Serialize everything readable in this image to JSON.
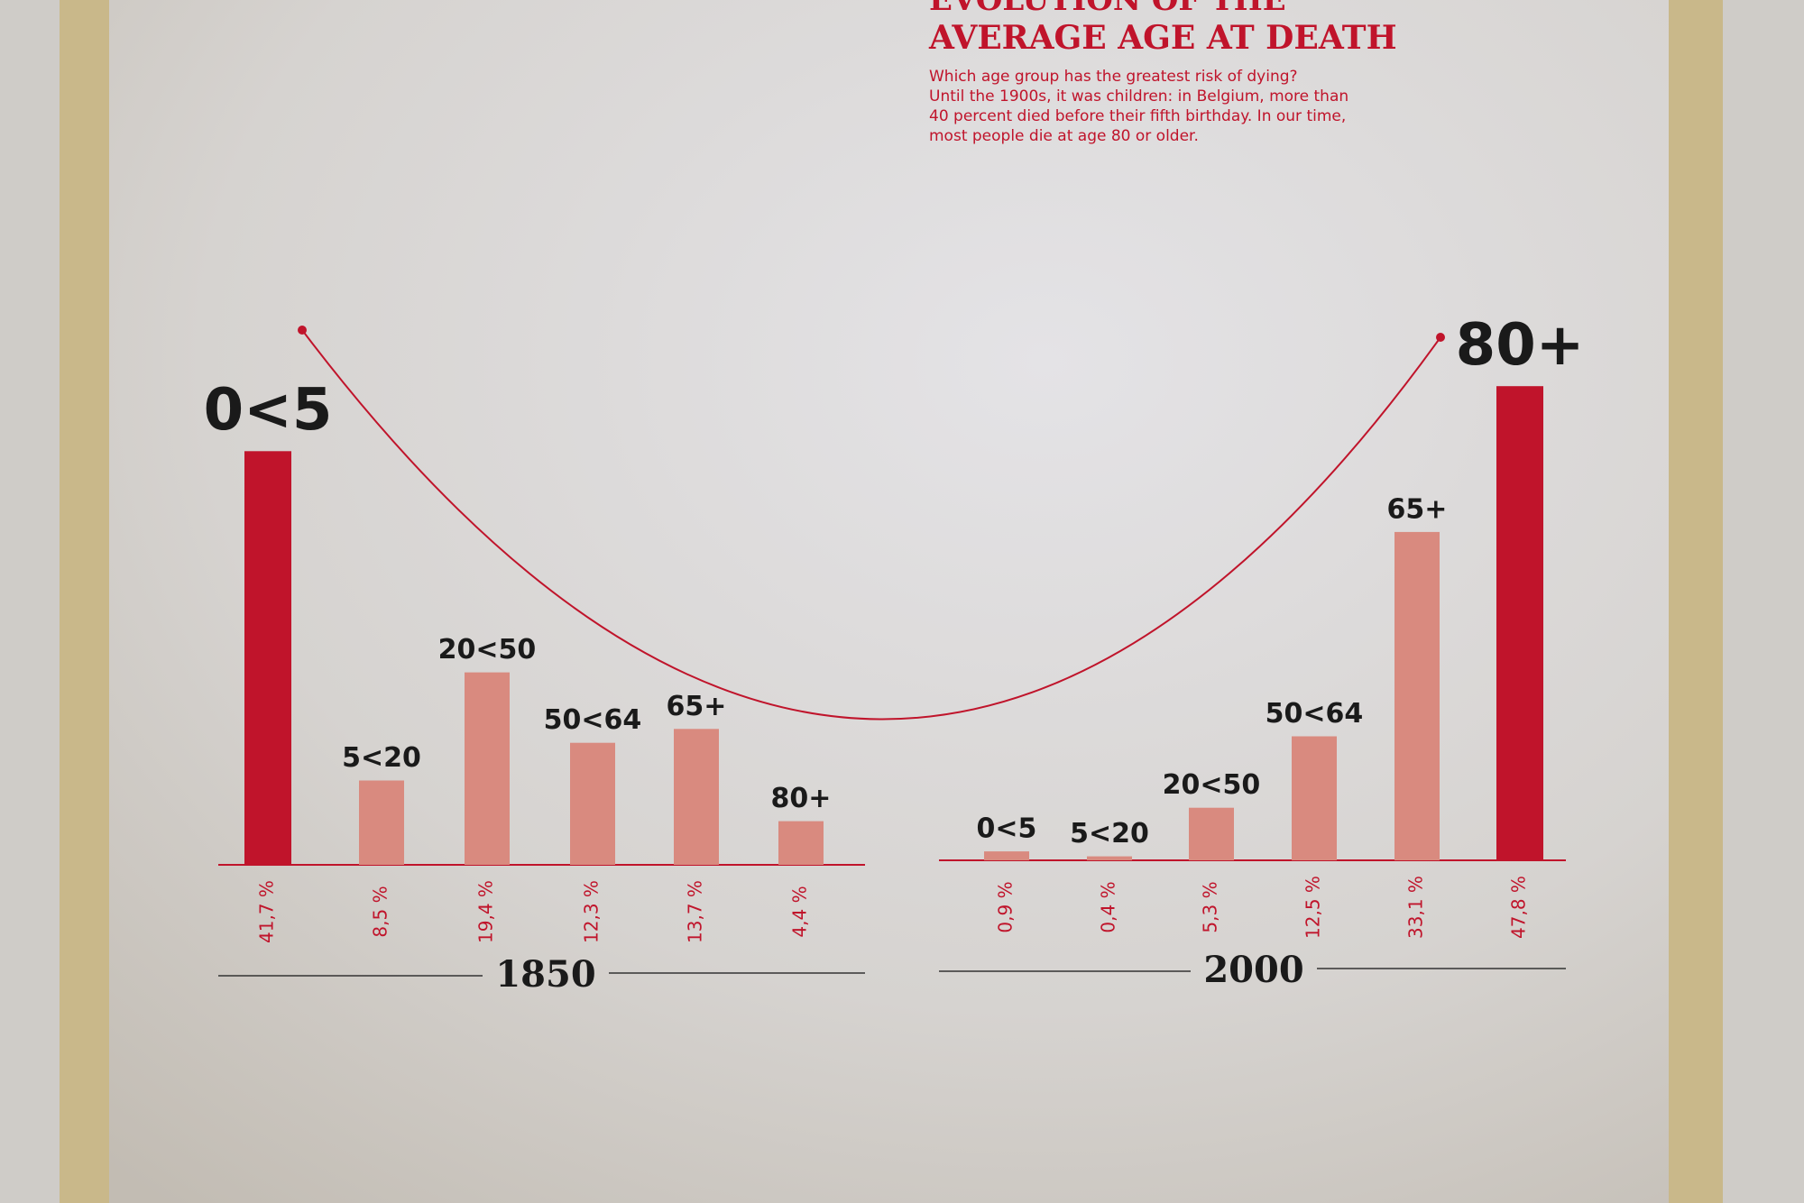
{
  "header": {
    "kicker": "EVOLUTION OF THE",
    "title": "AVERAGE AGE AT DEATH",
    "text": [
      "Which age group has the greatest risk of dying?",
      "Until the 1900s, it was children: in Belgium, more than",
      "40 percent died before their fifth birthday. In our time,",
      "most people die at age 80 or older."
    ]
  },
  "chart_data": [
    {
      "type": "bar",
      "title": "1850",
      "categories": [
        "0<5",
        "5<20",
        "20<50",
        "50<64",
        "65+",
        "80+"
      ],
      "values": [
        41.7,
        8.5,
        19.4,
        12.3,
        13.7,
        4.4
      ],
      "value_labels": [
        "41,7 %",
        "8,5 %",
        "19,4 %",
        "12,3 %",
        "13,7 %",
        "4,4 %"
      ],
      "colors": [
        "#c0142b",
        "#d98a7f",
        "#d98a7f",
        "#d98a7f",
        "#d98a7f",
        "#d98a7f"
      ]
    },
    {
      "type": "bar",
      "title": "2000",
      "categories": [
        "0<5",
        "5<20",
        "20<50",
        "50<64",
        "65+",
        "80+"
      ],
      "values": [
        0.9,
        0.4,
        5.3,
        12.5,
        33.1,
        47.8
      ],
      "value_labels": [
        "0,9 %",
        "0,4 %",
        "5,3 %",
        "12,5 %",
        "33,1 %",
        "47,8 %"
      ],
      "colors": [
        "#d98a7f",
        "#d98a7f",
        "#d98a7f",
        "#d98a7f",
        "#d98a7f",
        "#c0142b"
      ]
    }
  ]
}
